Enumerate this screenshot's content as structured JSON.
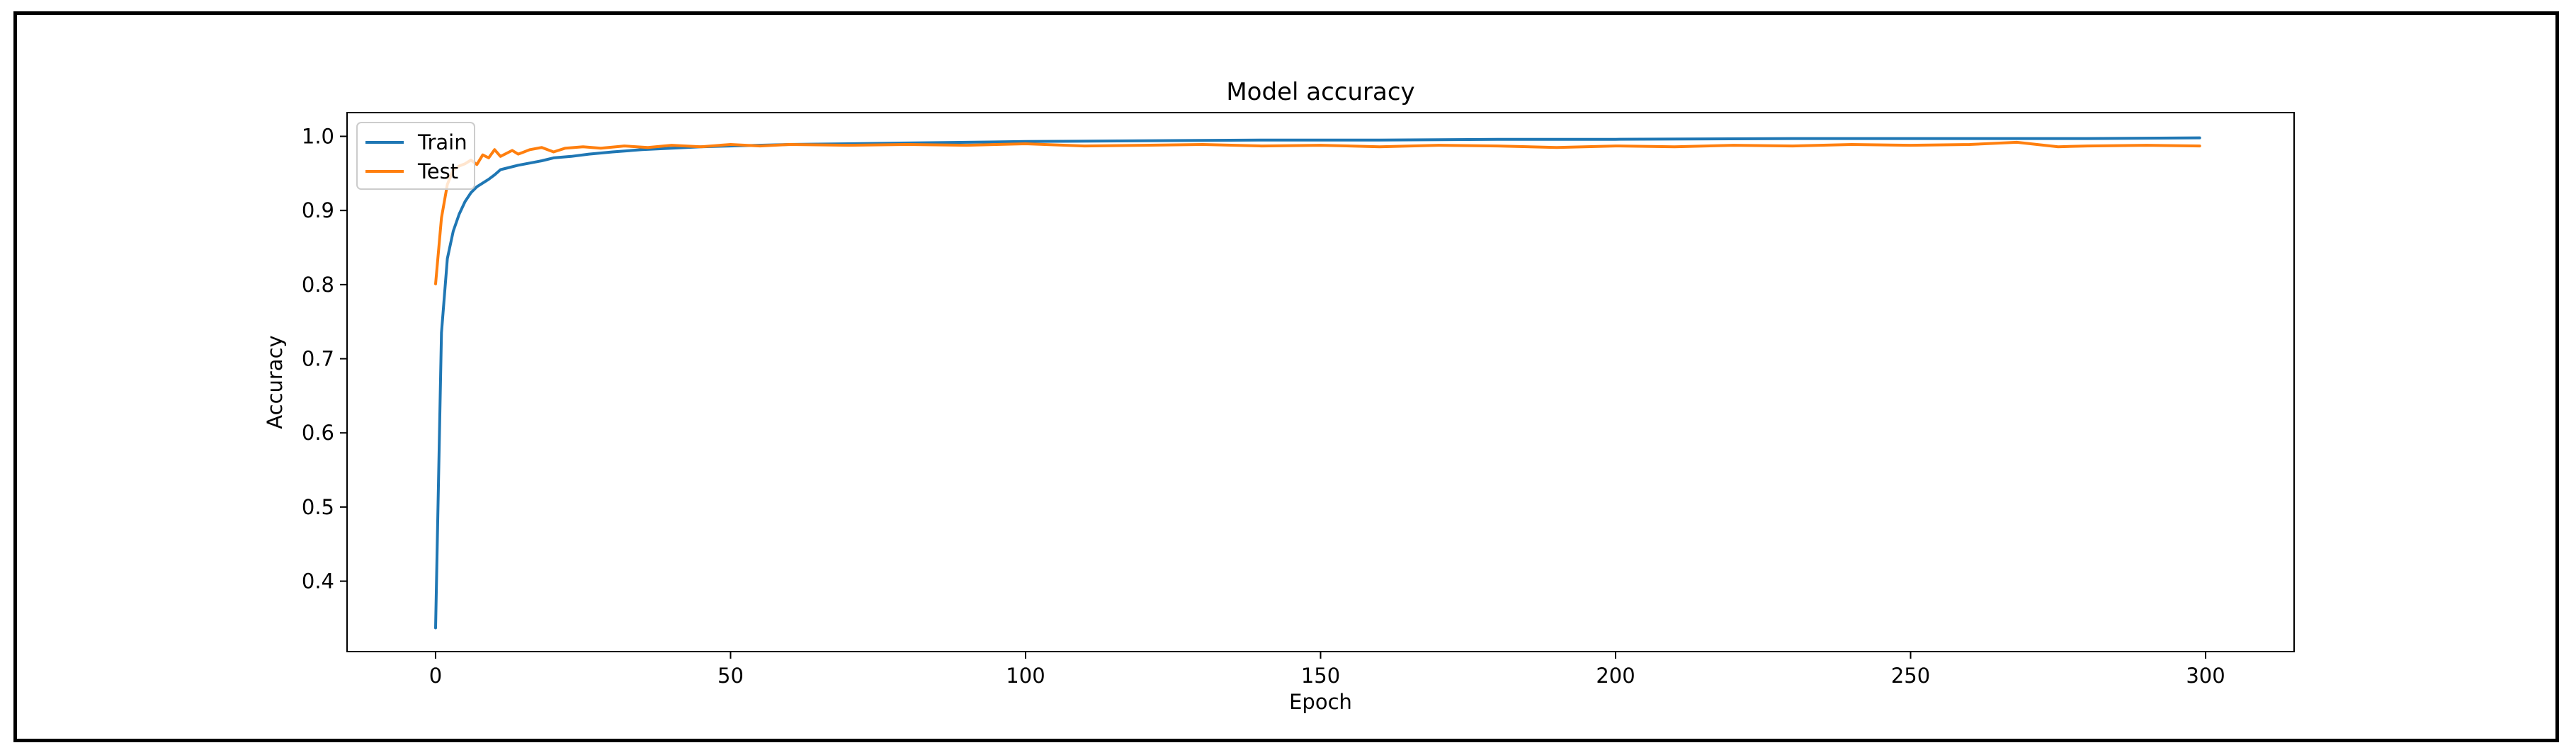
{
  "chart_data": {
    "type": "line",
    "title": "Model accuracy",
    "xlabel": "Epoch",
    "ylabel": "Accuracy",
    "xlim": [
      -15,
      315
    ],
    "ylim": [
      0.305,
      1.032
    ],
    "xticks": [
      0,
      50,
      100,
      150,
      200,
      250,
      300
    ],
    "yticks": [
      0.4,
      0.5,
      0.6,
      0.7,
      0.8,
      0.9,
      1.0
    ],
    "legend_position": "upper-left",
    "grid": false,
    "series": [
      {
        "name": "Train",
        "color": "#1f77b4",
        "points": [
          [
            0,
            0.337
          ],
          [
            1,
            0.735
          ],
          [
            2,
            0.835
          ],
          [
            3,
            0.872
          ],
          [
            4,
            0.895
          ],
          [
            5,
            0.912
          ],
          [
            6,
            0.924
          ],
          [
            7,
            0.932
          ],
          [
            8,
            0.937
          ],
          [
            9,
            0.942
          ],
          [
            10,
            0.948
          ],
          [
            11,
            0.955
          ],
          [
            12,
            0.957
          ],
          [
            14,
            0.961
          ],
          [
            16,
            0.964
          ],
          [
            18,
            0.967
          ],
          [
            20,
            0.971
          ],
          [
            23,
            0.973
          ],
          [
            26,
            0.976
          ],
          [
            30,
            0.979
          ],
          [
            35,
            0.982
          ],
          [
            40,
            0.984
          ],
          [
            45,
            0.986
          ],
          [
            50,
            0.987
          ],
          [
            60,
            0.989
          ],
          [
            70,
            0.99
          ],
          [
            80,
            0.991
          ],
          [
            90,
            0.992
          ],
          [
            100,
            0.993
          ],
          [
            120,
            0.994
          ],
          [
            140,
            0.995
          ],
          [
            160,
            0.995
          ],
          [
            180,
            0.996
          ],
          [
            200,
            0.996
          ],
          [
            230,
            0.997
          ],
          [
            260,
            0.997
          ],
          [
            280,
            0.997
          ],
          [
            299,
            0.998
          ]
        ]
      },
      {
        "name": "Test",
        "color": "#ff7f0e",
        "points": [
          [
            0,
            0.801
          ],
          [
            1,
            0.89
          ],
          [
            2,
            0.935
          ],
          [
            3,
            0.955
          ],
          [
            4,
            0.96
          ],
          [
            5,
            0.963
          ],
          [
            6,
            0.968
          ],
          [
            7,
            0.962
          ],
          [
            8,
            0.975
          ],
          [
            9,
            0.971
          ],
          [
            10,
            0.982
          ],
          [
            11,
            0.973
          ],
          [
            12,
            0.977
          ],
          [
            13,
            0.981
          ],
          [
            14,
            0.976
          ],
          [
            15,
            0.979
          ],
          [
            16,
            0.982
          ],
          [
            18,
            0.985
          ],
          [
            20,
            0.979
          ],
          [
            22,
            0.984
          ],
          [
            25,
            0.986
          ],
          [
            28,
            0.984
          ],
          [
            32,
            0.987
          ],
          [
            36,
            0.985
          ],
          [
            40,
            0.988
          ],
          [
            45,
            0.986
          ],
          [
            50,
            0.989
          ],
          [
            55,
            0.987
          ],
          [
            60,
            0.989
          ],
          [
            70,
            0.988
          ],
          [
            80,
            0.989
          ],
          [
            90,
            0.988
          ],
          [
            100,
            0.99
          ],
          [
            110,
            0.987
          ],
          [
            120,
            0.988
          ],
          [
            130,
            0.989
          ],
          [
            140,
            0.987
          ],
          [
            150,
            0.988
          ],
          [
            160,
            0.986
          ],
          [
            170,
            0.988
          ],
          [
            180,
            0.987
          ],
          [
            190,
            0.985
          ],
          [
            200,
            0.987
          ],
          [
            210,
            0.986
          ],
          [
            220,
            0.988
          ],
          [
            230,
            0.987
          ],
          [
            240,
            0.989
          ],
          [
            250,
            0.988
          ],
          [
            260,
            0.989
          ],
          [
            268,
            0.992
          ],
          [
            275,
            0.986
          ],
          [
            280,
            0.987
          ],
          [
            290,
            0.988
          ],
          [
            299,
            0.987
          ]
        ]
      }
    ]
  }
}
